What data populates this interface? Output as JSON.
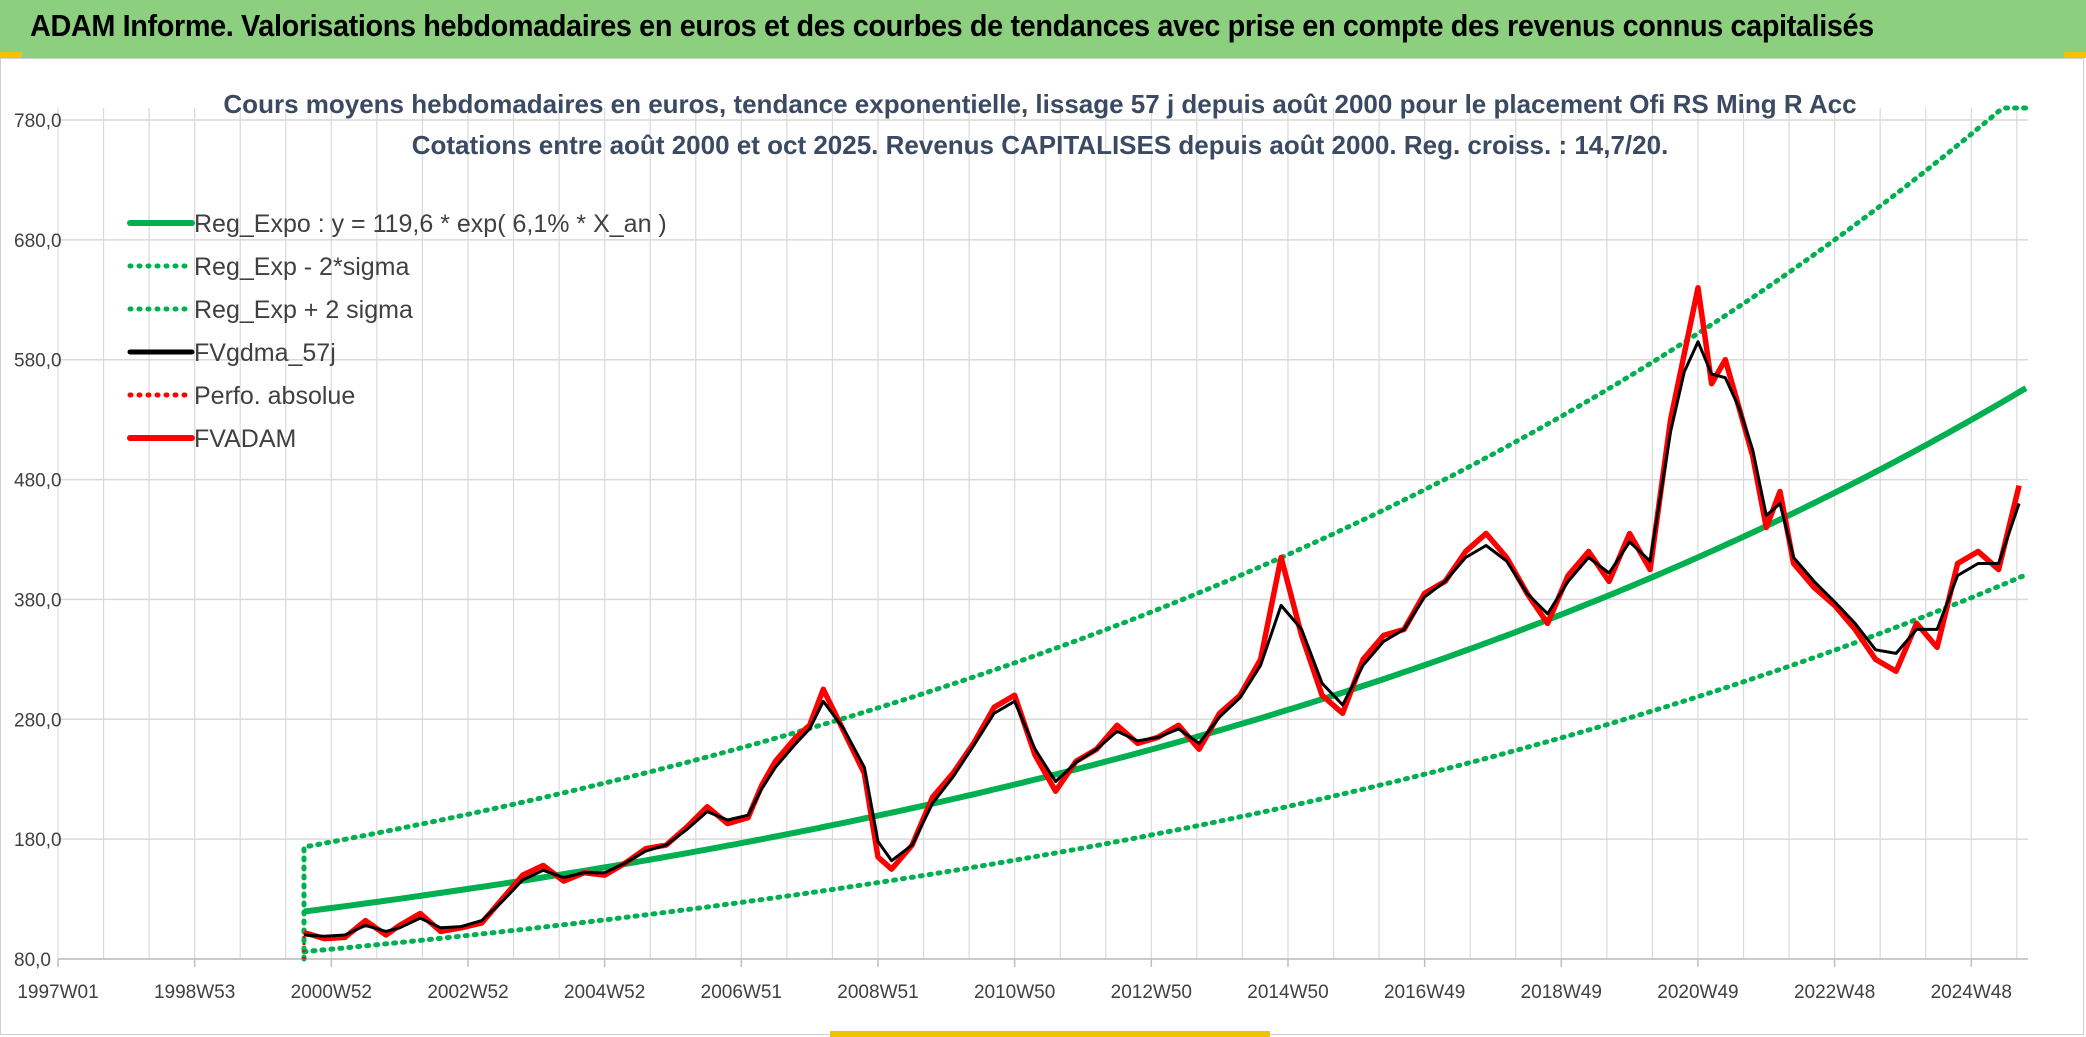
{
  "header": {
    "title": "ADAM Informe. Valorisations hebdomadaires en euros et des courbes de tendances avec prise en compte des revenus connus capitalisés"
  },
  "colors": {
    "header_bg": "#8ccf7e",
    "reg_expo": "#00b050",
    "fvgdma": "#000000",
    "fvadam": "#ff0000",
    "perfo": "#ff0000",
    "grid": "#d9d9d9"
  },
  "chart_data": {
    "type": "line",
    "title_line1": "Cours moyens hebdomadaires en euros, tendance exponentielle, lissage 57 j depuis août 2000 pour le placement Ofi RS Ming R Acc",
    "title_line2": "Cotations entre août 2000 et oct 2025. Revenus CAPITALISES depuis août 2000. Reg. croiss. : 14,7/20.",
    "ylim": [
      80,
      790
    ],
    "y_ticks": [
      80,
      180,
      280,
      380,
      480,
      580,
      680,
      780
    ],
    "y_tick_labels": [
      "80,0",
      "180,0",
      "280,0",
      "380,0",
      "480,0",
      "580,0",
      "680,0",
      "780,0"
    ],
    "xlim": [
      1997.0,
      2025.83
    ],
    "x_ticks": [
      1997.0,
      1999.0,
      2001.0,
      2003.0,
      2005.0,
      2007.0,
      2009.0,
      2011.0,
      2013.0,
      2015.0,
      2017.0,
      2019.0,
      2021.0,
      2023.0,
      2025.0
    ],
    "x_tick_labels": [
      "1997W01",
      "1998W53",
      "2000W52",
      "2002W52",
      "2004W52",
      "2006W51",
      "2008W51",
      "2010W50",
      "2012W50",
      "2014W50",
      "2016W49",
      "2018W49",
      "2020W49",
      "2022W48",
      "2024W48"
    ],
    "legend": [
      {
        "name": "Reg_Expo : y = 119,6 * exp( 6,1% *  X_an )",
        "style": "solid-thick",
        "color": "#00b050"
      },
      {
        "name": "Reg_Exp - 2*sigma",
        "style": "dotted",
        "color": "#00b050"
      },
      {
        "name": "Reg_Exp + 2 sigma",
        "style": "dotted",
        "color": "#00b050"
      },
      {
        "name": "FVgdma_57j",
        "style": "solid",
        "color": "#000000"
      },
      {
        "name": "Perfo. absolue",
        "style": "dotted",
        "color": "#ff0000"
      },
      {
        "name": "FVADAM",
        "style": "solid-thick",
        "color": "#ff0000"
      }
    ],
    "regression": {
      "a": 119.6,
      "rate": 0.061,
      "x_start": 2000.6,
      "x_end": 2025.83,
      "lower_factor": 0.72,
      "upper_factor": 1.45
    },
    "series": [
      {
        "name": "FVADAM",
        "x": [
          2000.6,
          2000.9,
          2001.2,
          2001.5,
          2001.8,
          2002.0,
          2002.3,
          2002.6,
          2002.9,
          2003.2,
          2003.5,
          2003.8,
          2004.1,
          2004.4,
          2004.7,
          2005.0,
          2005.3,
          2005.6,
          2005.9,
          2006.2,
          2006.5,
          2006.8,
          2007.1,
          2007.3,
          2007.5,
          2007.8,
          2008.0,
          2008.2,
          2008.5,
          2008.8,
          2009.0,
          2009.2,
          2009.5,
          2009.8,
          2010.1,
          2010.4,
          2010.7,
          2011.0,
          2011.3,
          2011.6,
          2011.9,
          2012.2,
          2012.5,
          2012.8,
          2013.1,
          2013.4,
          2013.7,
          2014.0,
          2014.3,
          2014.6,
          2014.9,
          2015.2,
          2015.5,
          2015.8,
          2016.1,
          2016.4,
          2016.7,
          2017.0,
          2017.3,
          2017.6,
          2017.9,
          2018.2,
          2018.5,
          2018.8,
          2019.1,
          2019.4,
          2019.7,
          2020.0,
          2020.3,
          2020.6,
          2020.8,
          2021.0,
          2021.2,
          2021.4,
          2021.6,
          2021.8,
          2022.0,
          2022.2,
          2022.4,
          2022.7,
          2023.0,
          2023.3,
          2023.6,
          2023.9,
          2024.2,
          2024.5,
          2024.8,
          2025.1,
          2025.4,
          2025.7
        ],
        "values": [
          102,
          97,
          98,
          112,
          100,
          108,
          118,
          103,
          106,
          110,
          130,
          150,
          158,
          145,
          152,
          150,
          160,
          172,
          175,
          190,
          207,
          193,
          198,
          225,
          245,
          265,
          275,
          305,
          270,
          235,
          165,
          155,
          175,
          215,
          235,
          260,
          290,
          300,
          250,
          220,
          245,
          255,
          275,
          260,
          265,
          275,
          255,
          285,
          300,
          330,
          415,
          350,
          300,
          285,
          330,
          350,
          355,
          385,
          395,
          420,
          435,
          415,
          385,
          360,
          400,
          420,
          395,
          435,
          405,
          530,
          585,
          640,
          560,
          580,
          540,
          500,
          440,
          470,
          410,
          390,
          375,
          355,
          330,
          320,
          360,
          340,
          410,
          420,
          405,
          475
        ]
      },
      {
        "name": "FVgdma_57j",
        "x": [
          2000.6,
          2000.9,
          2001.2,
          2001.5,
          2001.8,
          2002.0,
          2002.3,
          2002.6,
          2002.9,
          2003.2,
          2003.5,
          2003.8,
          2004.1,
          2004.4,
          2004.7,
          2005.0,
          2005.3,
          2005.6,
          2005.9,
          2006.2,
          2006.5,
          2006.8,
          2007.1,
          2007.3,
          2007.5,
          2007.8,
          2008.0,
          2008.2,
          2008.5,
          2008.8,
          2009.0,
          2009.2,
          2009.5,
          2009.8,
          2010.1,
          2010.4,
          2010.7,
          2011.0,
          2011.3,
          2011.6,
          2011.9,
          2012.2,
          2012.5,
          2012.8,
          2013.1,
          2013.4,
          2013.7,
          2014.0,
          2014.3,
          2014.6,
          2014.9,
          2015.2,
          2015.5,
          2015.8,
          2016.1,
          2016.4,
          2016.7,
          2017.0,
          2017.3,
          2017.6,
          2017.9,
          2018.2,
          2018.5,
          2018.8,
          2019.1,
          2019.4,
          2019.7,
          2020.0,
          2020.3,
          2020.6,
          2020.8,
          2021.0,
          2021.2,
          2021.4,
          2021.6,
          2021.8,
          2022.0,
          2022.2,
          2022.4,
          2022.7,
          2023.0,
          2023.3,
          2023.6,
          2023.9,
          2024.2,
          2024.5,
          2024.8,
          2025.1,
          2025.4,
          2025.7
        ],
        "values": [
          100,
          99,
          100,
          108,
          103,
          106,
          114,
          106,
          107,
          112,
          128,
          146,
          154,
          148,
          152,
          152,
          160,
          170,
          175,
          188,
          203,
          196,
          200,
          222,
          240,
          260,
          272,
          295,
          272,
          240,
          178,
          162,
          175,
          210,
          232,
          258,
          285,
          295,
          255,
          228,
          244,
          255,
          270,
          262,
          265,
          272,
          260,
          282,
          298,
          325,
          375,
          355,
          310,
          292,
          325,
          345,
          355,
          382,
          395,
          415,
          425,
          412,
          385,
          368,
          395,
          415,
          402,
          428,
          412,
          520,
          570,
          595,
          568,
          565,
          540,
          505,
          450,
          460,
          415,
          395,
          378,
          360,
          338,
          335,
          355,
          355,
          400,
          410,
          410,
          460
        ]
      },
      {
        "name": "Perfo. absolue",
        "x": [
          2000.6,
          2000.6
        ],
        "values": [
          80,
          102
        ]
      }
    ]
  }
}
